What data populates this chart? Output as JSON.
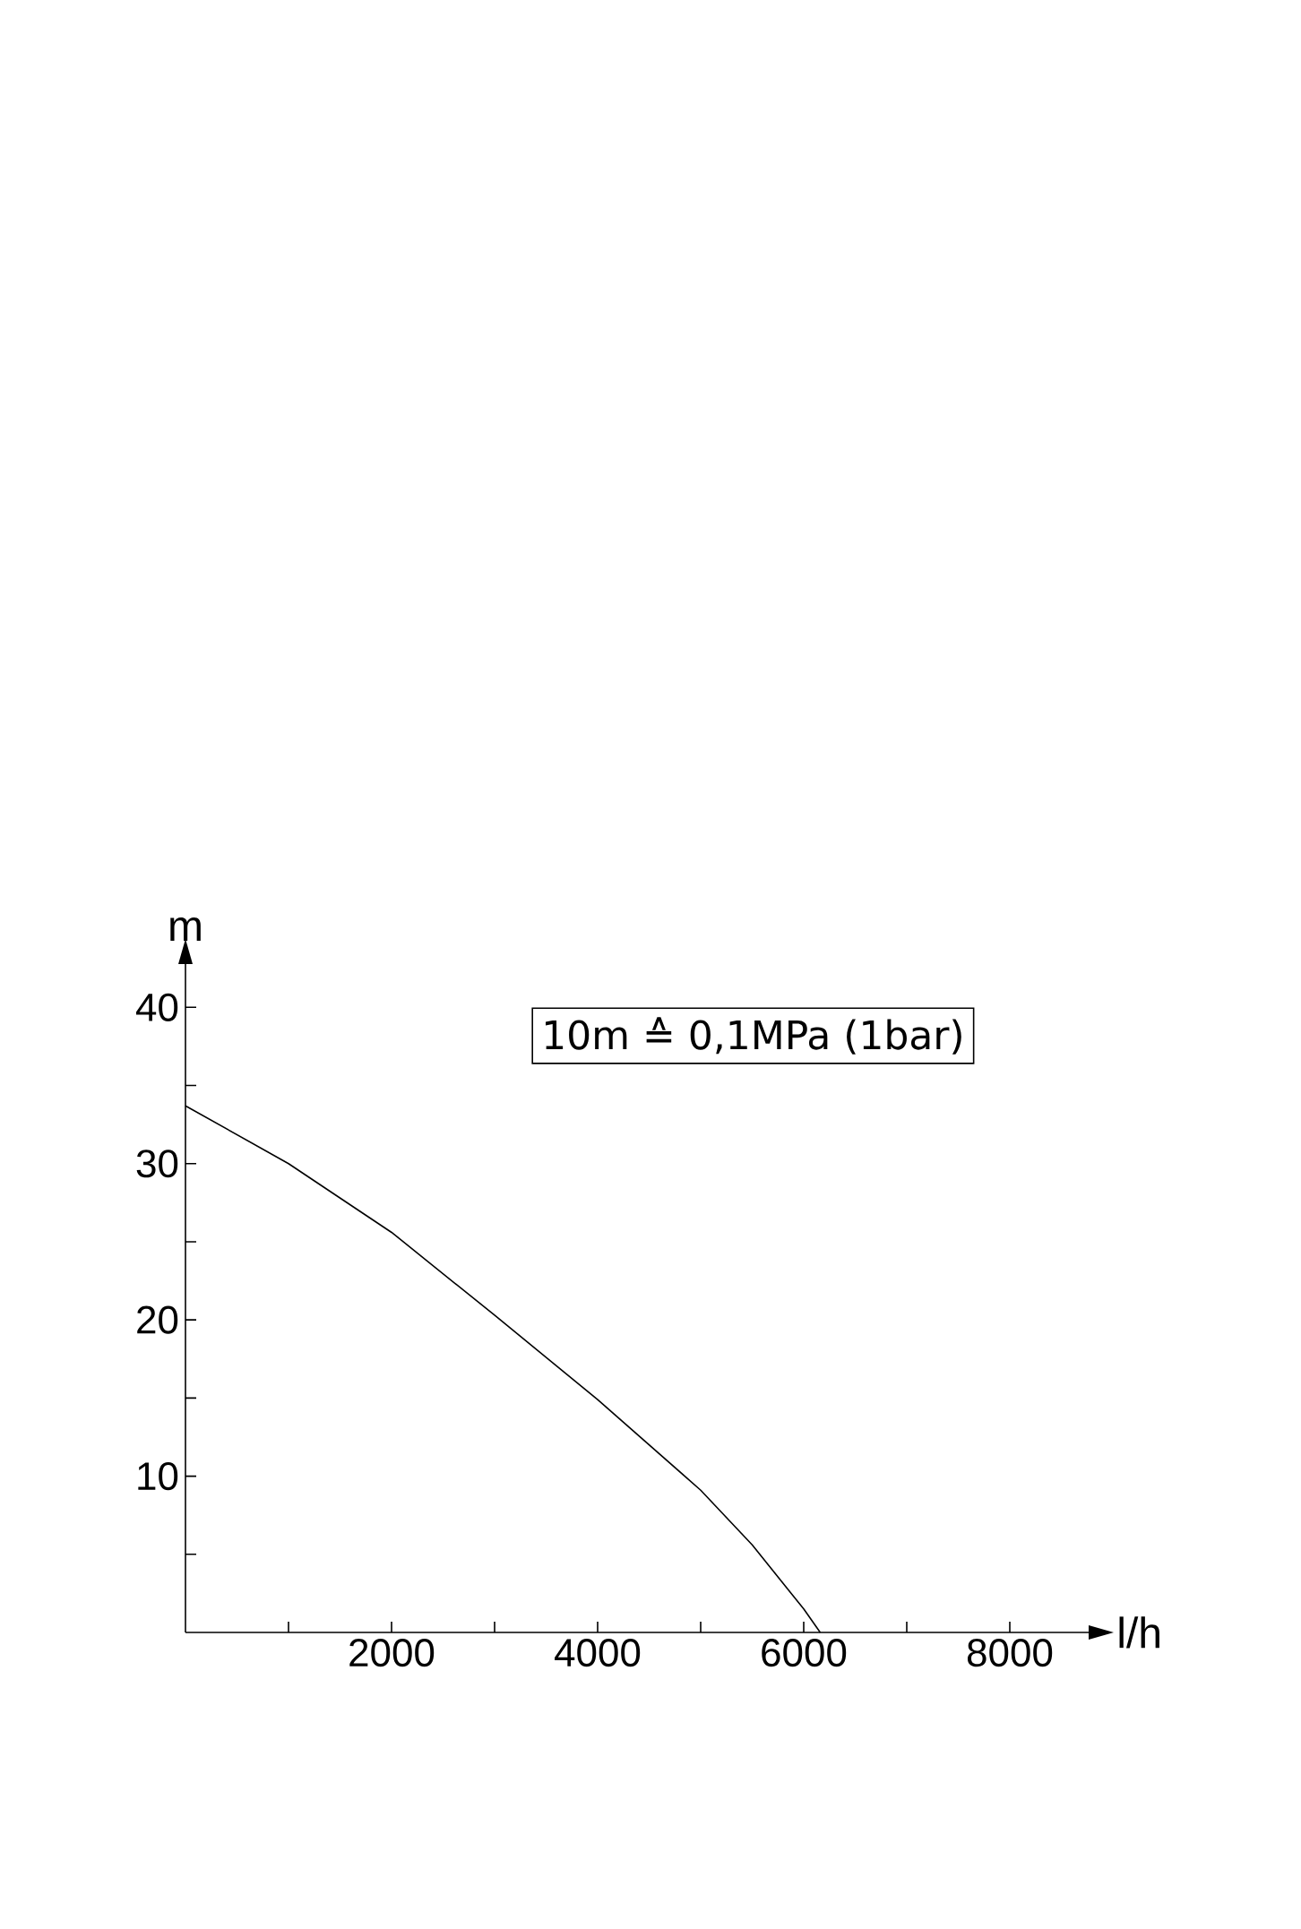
{
  "chart_data": {
    "type": "line",
    "xlabel": "l/h",
    "ylabel": "m",
    "annotations": [
      "10m ≙ 0,1MPa (1bar)"
    ],
    "xlim": [
      0,
      8800
    ],
    "ylim": [
      0,
      43
    ],
    "xticks": [
      {
        "value": 1000,
        "label": null
      },
      2000,
      {
        "value": 3000,
        "label": null
      },
      4000,
      {
        "value": 5000,
        "label": null
      },
      6000,
      {
        "value": 7000,
        "label": null
      },
      8000
    ],
    "yticks": [
      {
        "value": 5,
        "label": null
      },
      10,
      {
        "value": 15,
        "label": null
      },
      20,
      {
        "value": 25,
        "label": null
      },
      30,
      {
        "value": 35,
        "label": null
      },
      40
    ],
    "series": [
      {
        "color": "#000000",
        "x": [
          0,
          1000,
          2000,
          3000,
          4000,
          5000,
          5500,
          6000,
          6160
        ],
        "values": [
          33.7,
          30.0,
          25.6,
          20.3,
          14.9,
          9.1,
          5.6,
          1.5,
          0
        ]
      }
    ]
  }
}
